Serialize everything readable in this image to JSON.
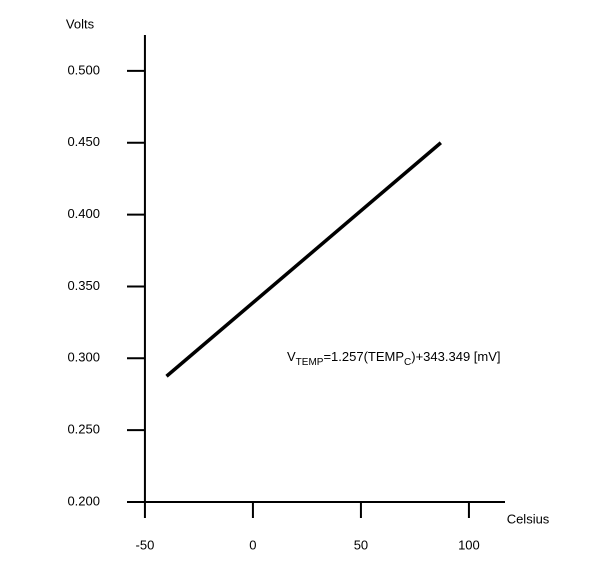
{
  "chart_data": {
    "type": "line",
    "ylabel": "Volts",
    "xlabel": "Celsius",
    "annotation": [
      "V",
      "TEMP",
      "=1.257(TEMP",
      "C",
      ")+343.349 [mV]"
    ],
    "x": [
      -40,
      87
    ],
    "series": [
      {
        "color": "#000000",
        "values": [
          0.2875,
          0.45
        ]
      }
    ],
    "xlim": [
      -58.3,
      116.7
    ],
    "ylim": [
      0.2,
      0.525
    ],
    "xticks": [
      -50,
      0,
      50,
      100
    ],
    "yticks": [
      {
        "value": 0.2,
        "label": "0.200"
      },
      {
        "value": 0.25,
        "label": "0.250"
      },
      {
        "value": 0.3,
        "label": "0.300"
      },
      {
        "value": 0.35,
        "label": "0.350"
      },
      {
        "value": 0.4,
        "label": "0.400"
      },
      {
        "value": 0.45,
        "label": "0.450"
      },
      {
        "value": 0.5,
        "label": "0.500"
      }
    ]
  }
}
